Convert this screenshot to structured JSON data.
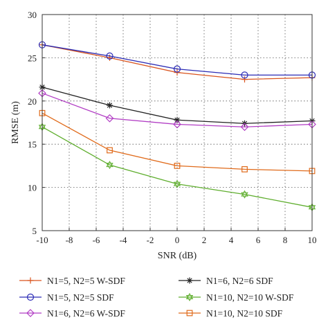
{
  "chart_data": {
    "type": "line",
    "xlabel": "SNR (dB)",
    "ylabel": "RMSE (m)",
    "xlim": [
      -10,
      10
    ],
    "ylim": [
      5,
      30
    ],
    "xticks": [
      -10,
      -8,
      -6,
      -4,
      -2,
      0,
      2,
      4,
      6,
      8,
      10
    ],
    "yticks": [
      5,
      10,
      15,
      20,
      25,
      30
    ],
    "grid": true,
    "x": [
      -10,
      -5,
      0,
      5,
      10
    ],
    "legend_position": "bottom",
    "series": [
      {
        "name": "N1=5, N2=5 W-SDF",
        "values": [
          26.5,
          25.0,
          23.3,
          22.5,
          22.7
        ],
        "color": "#d9541e",
        "marker": "plus"
      },
      {
        "name": "N1=6, N2=6 SDF",
        "values": [
          21.6,
          19.5,
          17.8,
          17.4,
          17.7
        ],
        "color": "#222222",
        "marker": "asterisk"
      },
      {
        "name": "N1=5, N2=5 SDF",
        "values": [
          26.5,
          25.2,
          23.7,
          23.0,
          23.0
        ],
        "color": "#2b2bb5",
        "marker": "circle"
      },
      {
        "name": "N1=10, N2=10 W-SDF",
        "values": [
          17.0,
          12.6,
          10.4,
          9.2,
          7.7
        ],
        "color": "#5fae2e",
        "marker": "hexagram"
      },
      {
        "name": "N1=6, N2=6 W-SDF",
        "values": [
          20.9,
          18.0,
          17.3,
          17.0,
          17.3
        ],
        "color": "#b13cc4",
        "marker": "diamond"
      },
      {
        "name": "N1=10, N2=10 SDF",
        "values": [
          18.6,
          14.3,
          12.5,
          12.1,
          11.9
        ],
        "color": "#e06a1a",
        "marker": "square"
      }
    ]
  }
}
